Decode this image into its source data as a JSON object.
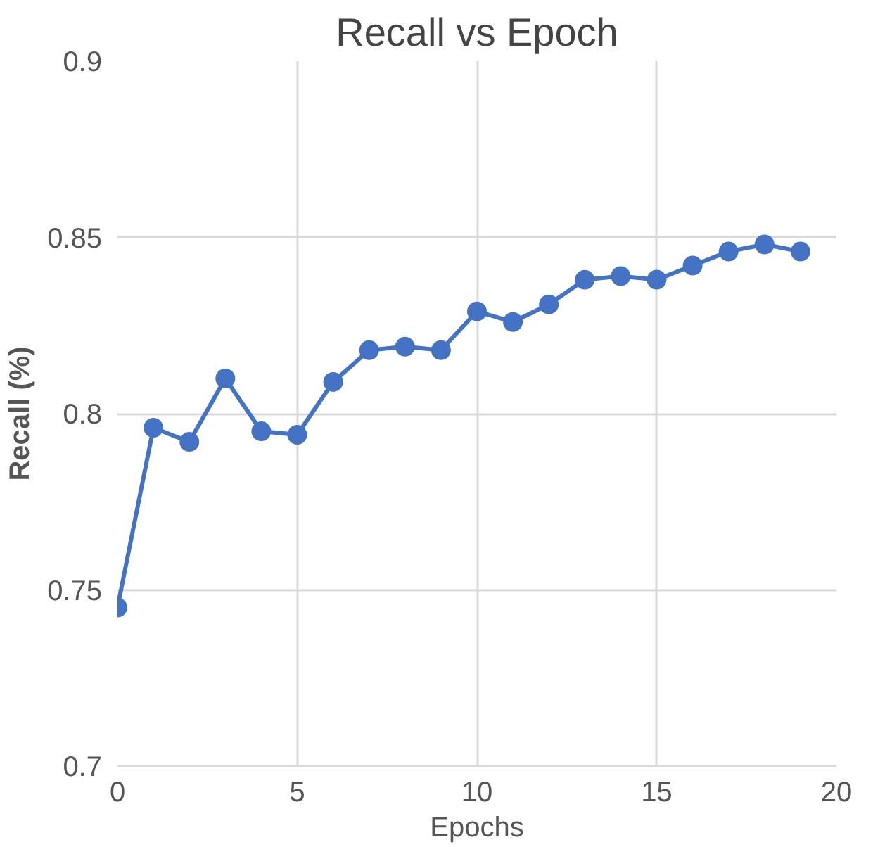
{
  "chart_data": {
    "type": "line",
    "title": "Recall vs Epoch",
    "xlabel": "Epochs",
    "ylabel": "Recall (%)",
    "x": [
      0,
      1,
      2,
      3,
      4,
      5,
      6,
      7,
      8,
      9,
      10,
      11,
      12,
      13,
      14,
      15,
      16,
      17,
      18,
      19
    ],
    "series": [
      {
        "color": "#4472c4",
        "values": [
          0.745,
          0.796,
          0.792,
          0.81,
          0.795,
          0.794,
          0.809,
          0.818,
          0.819,
          0.818,
          0.829,
          0.826,
          0.831,
          0.838,
          0.839,
          0.838,
          0.842,
          0.846,
          0.848,
          0.846
        ]
      }
    ],
    "xlim": [
      0,
      20
    ],
    "xticks": [
      0,
      5,
      10,
      15,
      20
    ],
    "ylim": [
      0.7,
      0.9
    ],
    "yticks": [
      {
        "value": 0.7,
        "label": "0.7"
      },
      {
        "value": 0.75,
        "label": "0.75"
      },
      {
        "value": 0.8,
        "label": "0.8"
      },
      {
        "value": 0.85,
        "label": "0.85"
      },
      {
        "value": 0.9,
        "label": "0.9"
      }
    ],
    "grid": true,
    "marker": "circle",
    "line_style": "solid"
  }
}
